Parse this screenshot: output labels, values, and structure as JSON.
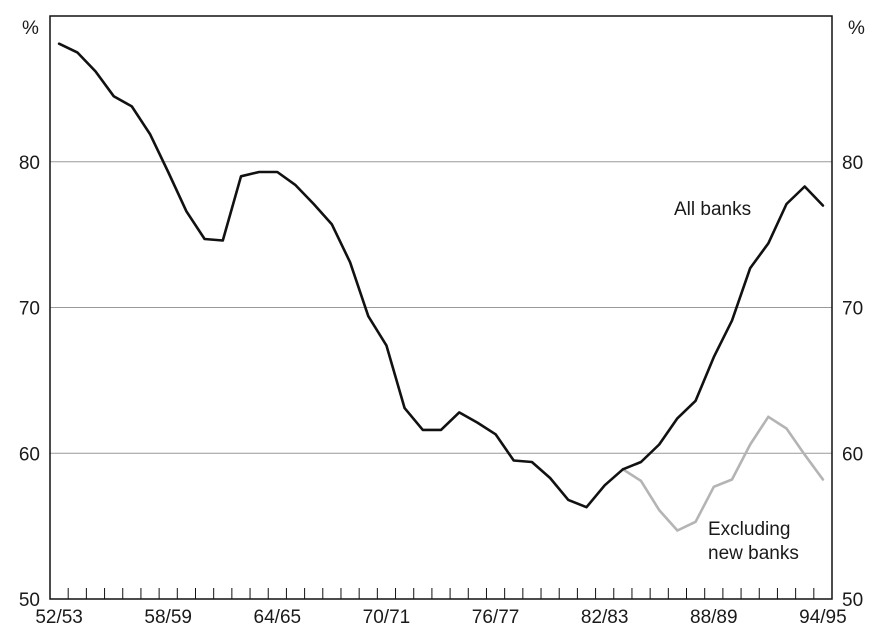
{
  "chart_data": {
    "type": "line",
    "y_unit_left": "%",
    "y_unit_right": "%",
    "ylim": [
      50,
      90
    ],
    "y_ticks": [
      50,
      60,
      70,
      80
    ],
    "y_tick_labels": [
      "50",
      "60",
      "70",
      "80"
    ],
    "x_tick_labels": [
      "52/53",
      "58/59",
      "64/65",
      "70/71",
      "76/77",
      "82/83",
      "88/89",
      "94/95"
    ],
    "grid": "horizontal",
    "series": [
      {
        "name": "All banks",
        "color": "#111111",
        "x": [
          "52/53",
          "53/54",
          "54/55",
          "55/56",
          "56/57",
          "57/58",
          "58/59",
          "59/60",
          "60/61",
          "61/62",
          "62/63",
          "63/64",
          "64/65",
          "65/66",
          "66/67",
          "67/68",
          "68/69",
          "69/70",
          "70/71",
          "71/72",
          "72/73",
          "73/74",
          "74/75",
          "75/76",
          "76/77",
          "77/78",
          "78/79",
          "79/80",
          "80/81",
          "81/82",
          "82/83",
          "83/84",
          "84/85",
          "85/86",
          "86/87",
          "87/88",
          "88/89",
          "89/90",
          "90/91",
          "91/92",
          "92/93",
          "93/94",
          "94/95"
        ],
        "values": [
          88.1,
          87.5,
          86.2,
          84.5,
          83.8,
          81.9,
          79.3,
          76.6,
          74.7,
          74.6,
          79.0,
          79.3,
          79.3,
          78.4,
          77.1,
          75.7,
          73.1,
          69.4,
          67.4,
          63.1,
          61.6,
          61.6,
          62.8,
          62.1,
          61.3,
          59.5,
          59.4,
          58.3,
          56.8,
          56.3,
          57.8,
          58.9,
          59.4,
          60.6,
          62.4,
          63.6,
          66.6,
          69.1,
          72.7,
          74.4,
          77.1,
          78.3,
          77.0
        ]
      },
      {
        "name": "Excluding new banks",
        "color": "#b4b4b4",
        "x": [
          "83/84",
          "84/85",
          "85/86",
          "86/87",
          "87/88",
          "88/89",
          "89/90",
          "90/91",
          "91/92",
          "92/93",
          "93/94",
          "94/95"
        ],
        "values": [
          58.9,
          58.1,
          56.1,
          54.7,
          55.3,
          57.7,
          58.2,
          60.6,
          62.5,
          61.7,
          59.9,
          58.2
        ]
      }
    ],
    "annotations": {
      "all_banks": "All banks",
      "excluding_line1": "Excluding",
      "excluding_line2": "new banks"
    }
  }
}
